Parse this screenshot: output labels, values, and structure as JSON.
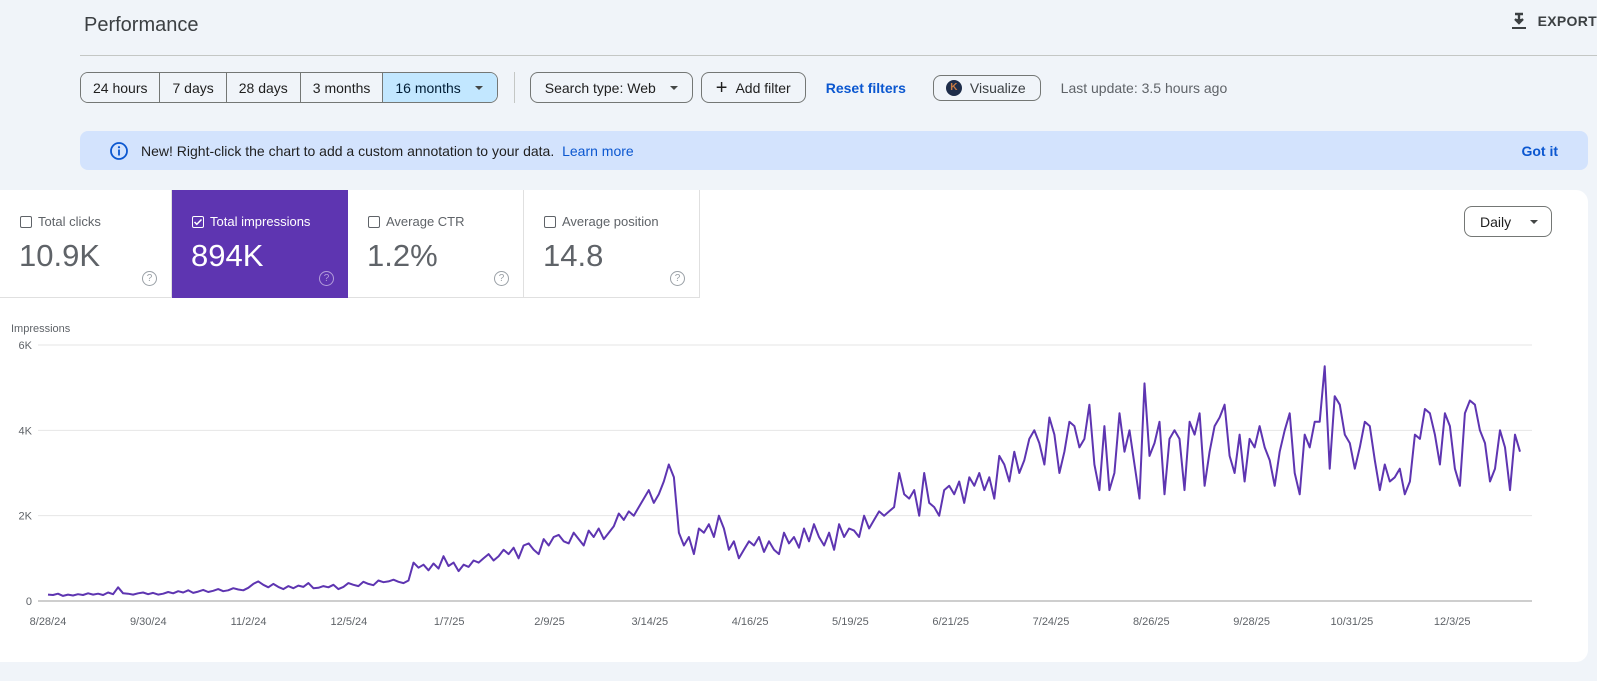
{
  "header": {
    "title": "Performance",
    "export_label": "EXPORT"
  },
  "toolbar": {
    "date_ranges": [
      "24 hours",
      "7 days",
      "28 days",
      "3 months",
      "16 months"
    ],
    "active_range": "16 months",
    "search_type": "Search type: Web",
    "add_filter": "Add filter",
    "reset_filters": "Reset filters",
    "visualize": "Visualize",
    "visualize_logo_letter": "K",
    "last_update": "Last update: 3.5 hours ago"
  },
  "banner": {
    "message": "New! Right-click the chart to add a custom annotation to your data.",
    "link": "Learn more",
    "dismiss": "Got it"
  },
  "metrics": [
    {
      "label": "Total clicks",
      "value": "10.9K",
      "checked": false
    },
    {
      "label": "Total impressions",
      "value": "894K",
      "checked": true
    },
    {
      "label": "Average CTR",
      "value": "1.2%",
      "checked": false
    },
    {
      "label": "Average position",
      "value": "14.8",
      "checked": false
    }
  ],
  "granularity": "Daily",
  "colors": {
    "accent": "#5e35b1",
    "line": "#5e35b1",
    "link": "#0b57d0",
    "banner_bg": "#d3e3fd",
    "active_range_bg": "#c2e7ff"
  },
  "chart_data": {
    "type": "line",
    "title": "",
    "xlabel": "",
    "ylabel": "Impressions",
    "ylim": [
      0,
      6000
    ],
    "yticks": [
      "0",
      "2K",
      "4K",
      "6K"
    ],
    "xticks": [
      "8/28/24",
      "9/30/24",
      "11/2/24",
      "12/5/24",
      "1/7/25",
      "2/9/25",
      "3/14/25",
      "4/16/25",
      "5/19/25",
      "6/21/25",
      "7/24/25",
      "8/26/25",
      "9/28/25",
      "10/31/25",
      "12/3/25"
    ],
    "grid": true,
    "legend": "none",
    "series": [
      {
        "name": "Impressions",
        "sampling": "approx every 3 days from 8/28/24",
        "values": [
          150,
          140,
          170,
          120,
          150,
          130,
          160,
          140,
          180,
          150,
          170,
          140,
          200,
          160,
          320,
          180,
          170,
          150,
          180,
          200,
          160,
          190,
          150,
          170,
          210,
          180,
          230,
          200,
          250,
          190,
          220,
          260,
          210,
          240,
          280,
          230,
          250,
          300,
          270,
          250,
          310,
          400,
          460,
          380,
          320,
          400,
          330,
          280,
          350,
          300,
          360,
          330,
          420,
          300,
          310,
          350,
          320,
          380,
          280,
          330,
          420,
          380,
          350,
          450,
          400,
          370,
          480,
          440,
          460,
          500,
          450,
          420,
          480,
          900,
          780,
          850,
          720,
          880,
          760,
          1050,
          820,
          900,
          700,
          850,
          800,
          950,
          900,
          1000,
          1100,
          950,
          1050,
          1200,
          1100,
          1250,
          1000,
          1300,
          1350,
          1200,
          1100,
          1450,
          1300,
          1500,
          1550,
          1400,
          1350,
          1600,
          1450,
          1300,
          1650,
          1500,
          1700,
          1450,
          1600,
          1750,
          2050,
          1900,
          2100,
          2000,
          2200,
          2400,
          2600,
          2300,
          2500,
          2800,
          3200,
          2900,
          1600,
          1300,
          1500,
          1100,
          1700,
          1600,
          1800,
          1500,
          2000,
          1700,
          1200,
          1400,
          1000,
          1200,
          1400,
          1300,
          1500,
          1150,
          1400,
          1200,
          1100,
          1600,
          1350,
          1500,
          1250,
          1700,
          1400,
          1800,
          1500,
          1300,
          1600,
          1200,
          1800,
          1500,
          1700,
          1650,
          1500,
          2000,
          1700,
          1900,
          2100,
          2000,
          2100,
          2200,
          3000,
          2500,
          2400,
          2600,
          2000,
          3000,
          2300,
          2200,
          2000,
          2600,
          2700,
          2500,
          2800,
          2300,
          2900,
          2700,
          3000,
          2600,
          2900,
          2400,
          3400,
          3200,
          2800,
          3500,
          3000,
          3300,
          3800,
          4000,
          3700,
          3200,
          4300,
          3900,
          3000,
          3500,
          4200,
          4100,
          3600,
          3800,
          4600,
          3200,
          2600,
          4100,
          2600,
          3000,
          4400,
          3500,
          4000,
          3200,
          2400,
          5100,
          3400,
          3700,
          4200,
          2500,
          3800,
          4000,
          3800,
          2600,
          4200,
          3900,
          4400,
          2700,
          3500,
          4100,
          4300,
          4600,
          3400,
          3000,
          3900,
          2800,
          3800,
          3600,
          4100,
          3600,
          3300,
          2700,
          3500,
          4000,
          4400,
          3000,
          2500,
          3900,
          3600,
          4200,
          4200,
          5500,
          3100,
          4800,
          4600,
          3900,
          3700,
          3100,
          3600,
          4200,
          4100,
          3300,
          2600,
          3200,
          2800,
          2900,
          3100,
          2500,
          2800,
          3900,
          3800,
          4500,
          4400,
          3900,
          3200,
          4400,
          4100,
          3100,
          2700,
          4400,
          4700,
          4600,
          4000,
          3700,
          2800,
          3100,
          4000,
          3600,
          2600,
          3900,
          3500
        ]
      }
    ]
  }
}
